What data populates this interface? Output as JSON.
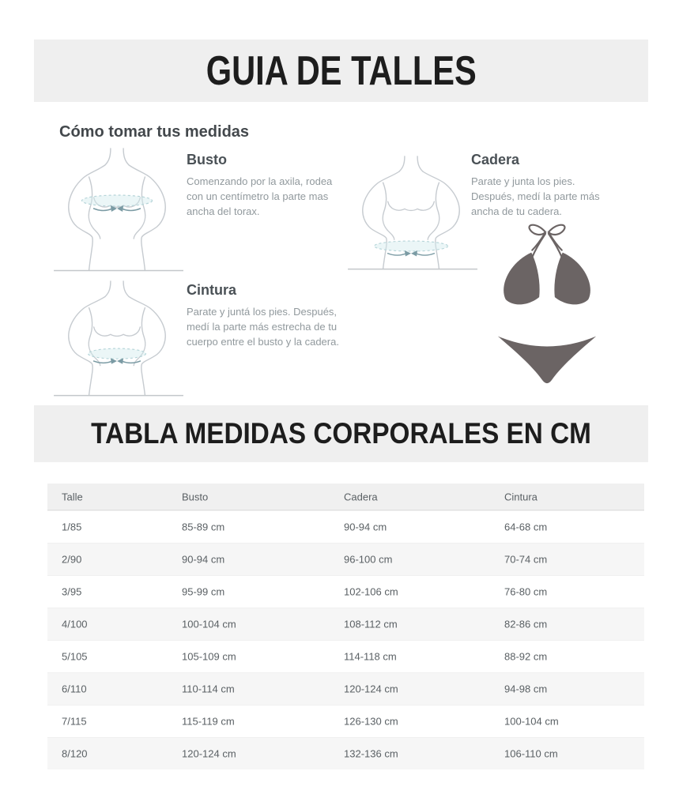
{
  "header": {
    "title": "GUIA DE TALLES"
  },
  "measurements": {
    "heading": "Cómo tomar tus medidas",
    "items": [
      {
        "title": "Busto",
        "text": "Comenzando por la axila, rodea con un centímetro la parte mas ancha del torax."
      },
      {
        "title": "Cadera",
        "text": "Parate y junta los pies. Después, medí la parte más ancha de tu cadera."
      },
      {
        "title": "Cintura",
        "text": "Parate y juntá los pies. Después, medí la parte más estrecha de tu cuerpo entre el busto y la cadera."
      }
    ]
  },
  "table": {
    "heading": "TABLA MEDIDAS CORPORALES EN CM",
    "columns": [
      "Talle",
      "Busto",
      "Cadera",
      "Cintura"
    ],
    "rows": [
      [
        "1/85",
        "85-89 cm",
        "90-94 cm",
        "64-68 cm"
      ],
      [
        "2/90",
        "90-94 cm",
        "96-100 cm",
        "70-74 cm"
      ],
      [
        "3/95",
        "95-99 cm",
        "102-106 cm",
        "76-80 cm"
      ],
      [
        "4/100",
        "100-104 cm",
        "108-112 cm",
        "82-86 cm"
      ],
      [
        "5/105",
        "105-109 cm",
        "114-118 cm",
        "88-92 cm"
      ],
      [
        "6/110",
        "110-114 cm",
        "120-124 cm",
        "94-98 cm"
      ],
      [
        "7/115",
        "115-119 cm",
        "126-130 cm",
        "100-104 cm"
      ],
      [
        "8/120",
        "120-124 cm",
        "132-136 cm",
        "106-110 cm"
      ]
    ]
  },
  "illustrations": {
    "busto_figure": "female-torso-bust-measure",
    "cadera_figure": "female-torso-hip-measure",
    "cintura_figure": "female-torso-waist-measure",
    "bikini": "triangle-bikini-set"
  },
  "colors": {
    "banner_bg": "#efefef",
    "banner_text": "#1d1d1d",
    "heading_text": "#43484c",
    "body_text": "#91999d",
    "figure_outline": "#c6cbd0",
    "measure_band": "#b5d4d8",
    "measure_arrow": "#7b9ba4",
    "bikini_fill": "#6b6464",
    "table_header_bg": "#f0f0f0",
    "table_row_alt_bg": "#f6f6f6",
    "table_text": "#5a6064"
  }
}
